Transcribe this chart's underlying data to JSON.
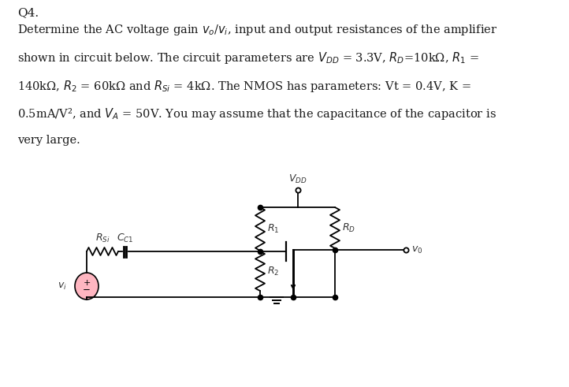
{
  "title": "Q4.",
  "body_lines": [
    "Determine the AC voltage gain $v_o$/$v_i$, input and output resistances of the amplifier",
    "shown in circuit below. The circuit parameters are $V_{DD}$ = 3.3V, $R_D$=10kΩ, $R_1$ =",
    "140kΩ, $R_2$ = 60kΩ and $R_{Si}$ = 4kΩ. The NMOS has parameters: Vt = 0.4V, K =",
    "0.5mA/V², and $V_A$ = 50V. You may assume that the capacitance of the capacitor is",
    "very large."
  ],
  "bg_color": "#ffffff",
  "text_color": "#1a1a1a",
  "circuit": {
    "vdd_label": "$V_{DD}$",
    "r1_label": "$R_1$",
    "r2_label": "$R_2$",
    "rd_label": "$R_D$",
    "rsi_label": "$R_{Si}$",
    "cc1_label": "$C_{C1}$",
    "vo_label": "$v_0$",
    "vi_label": "$v_i$"
  },
  "figsize": [
    7.22,
    4.91
  ],
  "dpi": 100
}
